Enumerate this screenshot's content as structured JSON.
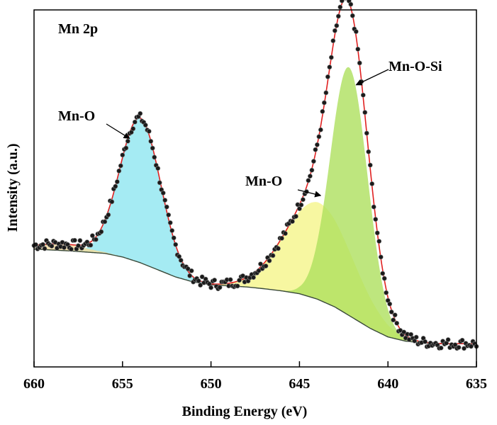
{
  "chart_data": {
    "type": "line",
    "title": "Mn 2p",
    "xlabel": "Binding Energy (eV)",
    "ylabel": "Intensity (a.u.)",
    "x_reversed": true,
    "xlim": [
      660,
      635
    ],
    "ylim": [
      0,
      1
    ],
    "xticks": [
      660,
      655,
      650,
      645,
      640,
      635
    ],
    "grid": false,
    "annotations": [
      {
        "text": "Mn-O",
        "x": 654,
        "y": 0.63
      },
      {
        "text": "Mn-O",
        "x": 644,
        "y": 0.48
      },
      {
        "text": "Mn-O-Si",
        "x": 641.5,
        "y": 0.82
      }
    ],
    "background": {
      "x": [
        660,
        658,
        656,
        655,
        654,
        653,
        652,
        651,
        650,
        649,
        648,
        647,
        646,
        645,
        644,
        643,
        642,
        641,
        640,
        639,
        638,
        637,
        636,
        635
      ],
      "y": [
        0.33,
        0.325,
        0.318,
        0.308,
        0.292,
        0.272,
        0.252,
        0.238,
        0.23,
        0.227,
        0.224,
        0.219,
        0.213,
        0.205,
        0.19,
        0.168,
        0.138,
        0.108,
        0.084,
        0.072,
        0.067,
        0.065,
        0.065,
        0.065
      ]
    },
    "series": [
      {
        "color": "#8fe6f0",
        "center": 654.0,
        "amplitude": 0.405,
        "sigma": 1.15
      },
      {
        "color": "#f5f58a",
        "center": 643.9,
        "amplitude": 0.272,
        "sigma": 1.9
      },
      {
        "color": "#aee05e",
        "center": 642.2,
        "amplitude": 0.695,
        "sigma": 1.05
      },
      {
        "color": "#f5dc9a",
        "center": 658.5,
        "amplitude": 0.018,
        "sigma": 1.4
      }
    ],
    "envelope_color": "#e02020",
    "background_color": "#3a4a3a",
    "data_points_color": "#1a1a1a"
  }
}
